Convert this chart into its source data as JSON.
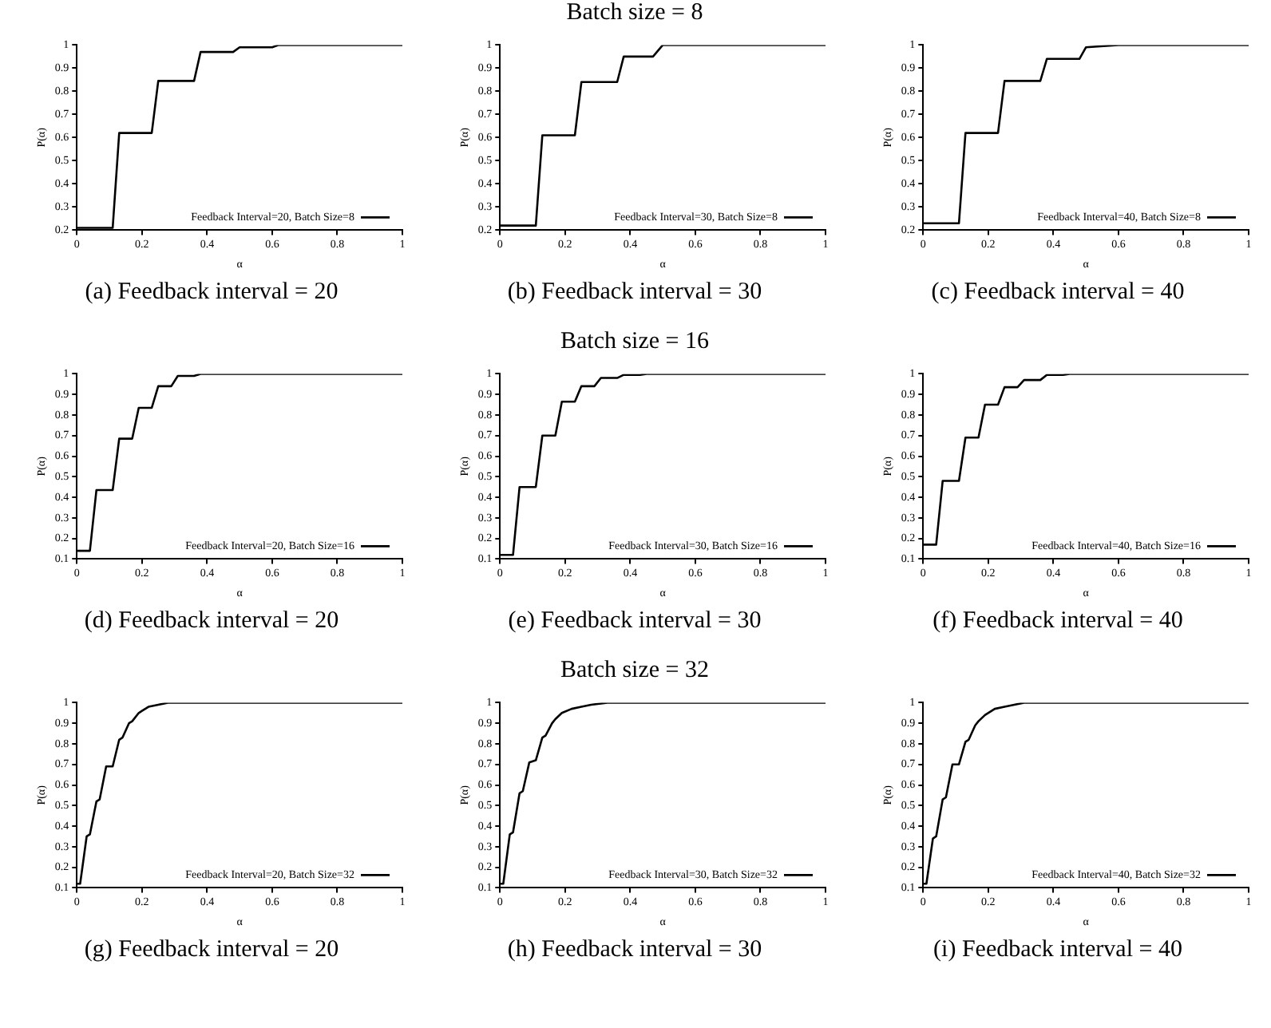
{
  "chart_data": [
    {
      "type": "line",
      "title": "(a) Feedback interval = 20",
      "xlabel": "α",
      "ylabel": "P(α)",
      "xlim": [
        0,
        1
      ],
      "ylim": [
        0.2,
        1
      ],
      "xticks": [
        0,
        0.2,
        0.4,
        0.6,
        0.8,
        1
      ],
      "yticks": [
        0.2,
        0.3,
        0.4,
        0.5,
        0.6,
        0.7,
        0.8,
        0.9,
        1
      ],
      "legend": "bottom right",
      "x": [
        0,
        0.11,
        0.13,
        0.23,
        0.25,
        0.36,
        0.38,
        0.48,
        0.5,
        0.6,
        0.62,
        1
      ],
      "series": [
        {
          "name": "Feedback Interval=20, Batch Size=8",
          "color": "#000000",
          "values": [
            0.21,
            0.21,
            0.62,
            0.62,
            0.845,
            0.845,
            0.97,
            0.97,
            0.99,
            0.99,
            1,
            1
          ]
        }
      ]
    },
    {
      "type": "line",
      "subtitle": "Batch size = 8",
      "title": "(b) Feedback interval = 30",
      "xlabel": "α",
      "ylabel": "P(α)",
      "xlim": [
        0,
        1
      ],
      "ylim": [
        0.2,
        1
      ],
      "xticks": [
        0,
        0.2,
        0.4,
        0.6,
        0.8,
        1
      ],
      "yticks": [
        0.2,
        0.3,
        0.4,
        0.5,
        0.6,
        0.7,
        0.8,
        0.9,
        1
      ],
      "legend": "bottom right",
      "x": [
        0,
        0.11,
        0.13,
        0.23,
        0.25,
        0.36,
        0.38,
        0.47,
        0.5,
        1
      ],
      "series": [
        {
          "name": "Feedback Interval=30, Batch Size=8",
          "color": "#000000",
          "values": [
            0.22,
            0.22,
            0.61,
            0.61,
            0.84,
            0.84,
            0.95,
            0.95,
            1,
            1
          ]
        }
      ]
    },
    {
      "type": "line",
      "title": "(c) Feedback interval = 40",
      "xlabel": "α",
      "ylabel": "P(α)",
      "xlim": [
        0,
        1
      ],
      "ylim": [
        0.2,
        1
      ],
      "xticks": [
        0,
        0.2,
        0.4,
        0.6,
        0.8,
        1
      ],
      "yticks": [
        0.2,
        0.3,
        0.4,
        0.5,
        0.6,
        0.7,
        0.8,
        0.9,
        1
      ],
      "legend": "bottom right",
      "x": [
        0,
        0.11,
        0.13,
        0.23,
        0.25,
        0.36,
        0.38,
        0.48,
        0.5,
        0.6,
        1
      ],
      "series": [
        {
          "name": "Feedback Interval=40, Batch Size=8",
          "color": "#000000",
          "values": [
            0.23,
            0.23,
            0.62,
            0.62,
            0.845,
            0.845,
            0.94,
            0.94,
            0.99,
            1,
            1
          ]
        }
      ]
    },
    {
      "type": "line",
      "title": "(d) Feedback interval = 20",
      "xlabel": "α",
      "ylabel": "P(α)",
      "xlim": [
        0,
        1
      ],
      "ylim": [
        0.1,
        1
      ],
      "xticks": [
        0,
        0.2,
        0.4,
        0.6,
        0.8,
        1
      ],
      "yticks": [
        0.1,
        0.2,
        0.3,
        0.4,
        0.5,
        0.6,
        0.7,
        0.8,
        0.9,
        1
      ],
      "legend": "bottom right",
      "x": [
        0,
        0.04,
        0.06,
        0.11,
        0.13,
        0.17,
        0.19,
        0.23,
        0.25,
        0.29,
        0.31,
        0.36,
        0.38,
        1
      ],
      "series": [
        {
          "name": "Feedback Interval=20, Batch Size=16",
          "color": "#000000",
          "values": [
            0.14,
            0.14,
            0.435,
            0.435,
            0.685,
            0.685,
            0.835,
            0.835,
            0.94,
            0.94,
            0.99,
            0.99,
            1,
            1
          ]
        }
      ]
    },
    {
      "type": "line",
      "subtitle": "Batch size = 16",
      "title": "(e) Feedback interval = 30",
      "xlabel": "α",
      "ylabel": "P(α)",
      "xlim": [
        0,
        1
      ],
      "ylim": [
        0.1,
        1
      ],
      "xticks": [
        0,
        0.2,
        0.4,
        0.6,
        0.8,
        1
      ],
      "yticks": [
        0.1,
        0.2,
        0.3,
        0.4,
        0.5,
        0.6,
        0.7,
        0.8,
        0.9,
        1
      ],
      "legend": "bottom right",
      "x": [
        0,
        0.04,
        0.06,
        0.11,
        0.13,
        0.17,
        0.19,
        0.23,
        0.25,
        0.29,
        0.31,
        0.36,
        0.38,
        0.43,
        0.45,
        1
      ],
      "series": [
        {
          "name": "Feedback Interval=30, Batch Size=16",
          "color": "#000000",
          "values": [
            0.12,
            0.12,
            0.45,
            0.45,
            0.7,
            0.7,
            0.865,
            0.865,
            0.94,
            0.94,
            0.98,
            0.98,
            0.995,
            0.995,
            1,
            1
          ]
        }
      ]
    },
    {
      "type": "line",
      "title": "(f) Feedback interval = 40",
      "xlabel": "α",
      "ylabel": "P(α)",
      "xlim": [
        0,
        1
      ],
      "ylim": [
        0.1,
        1
      ],
      "xticks": [
        0,
        0.2,
        0.4,
        0.6,
        0.8,
        1
      ],
      "yticks": [
        0.1,
        0.2,
        0.3,
        0.4,
        0.5,
        0.6,
        0.7,
        0.8,
        0.9,
        1
      ],
      "legend": "bottom right",
      "x": [
        0,
        0.04,
        0.06,
        0.11,
        0.13,
        0.17,
        0.19,
        0.23,
        0.25,
        0.29,
        0.31,
        0.36,
        0.38,
        0.43,
        0.45,
        1
      ],
      "series": [
        {
          "name": "Feedback Interval=40, Batch Size=16",
          "color": "#000000",
          "values": [
            0.17,
            0.17,
            0.48,
            0.48,
            0.69,
            0.69,
            0.85,
            0.85,
            0.935,
            0.935,
            0.97,
            0.97,
            0.995,
            0.995,
            1,
            1
          ]
        }
      ]
    },
    {
      "type": "line",
      "title": "(g) Feedback interval = 20",
      "xlabel": "α",
      "ylabel": "P(α)",
      "xlim": [
        0,
        1
      ],
      "ylim": [
        0.1,
        1
      ],
      "xticks": [
        0,
        0.2,
        0.4,
        0.6,
        0.8,
        1
      ],
      "yticks": [
        0.1,
        0.2,
        0.3,
        0.4,
        0.5,
        0.6,
        0.7,
        0.8,
        0.9,
        1
      ],
      "legend": "bottom right",
      "x": [
        0,
        0.01,
        0.03,
        0.04,
        0.06,
        0.07,
        0.09,
        0.11,
        0.13,
        0.14,
        0.16,
        0.17,
        0.19,
        0.2,
        0.22,
        0.25,
        0.28,
        1
      ],
      "series": [
        {
          "name": "Feedback Interval=20, Batch Size=32",
          "color": "#000000",
          "values": [
            0.12,
            0.12,
            0.35,
            0.36,
            0.52,
            0.53,
            0.69,
            0.69,
            0.82,
            0.83,
            0.9,
            0.91,
            0.95,
            0.96,
            0.98,
            0.99,
            1,
            1
          ]
        }
      ]
    },
    {
      "type": "line",
      "subtitle": "Batch size = 32",
      "title": "(h) Feedback interval = 30",
      "xlabel": "α",
      "ylabel": "P(α)",
      "xlim": [
        0,
        1
      ],
      "ylim": [
        0.1,
        1
      ],
      "xticks": [
        0,
        0.2,
        0.4,
        0.6,
        0.8,
        1
      ],
      "yticks": [
        0.1,
        0.2,
        0.3,
        0.4,
        0.5,
        0.6,
        0.7,
        0.8,
        0.9,
        1
      ],
      "legend": "bottom right",
      "x": [
        0,
        0.01,
        0.03,
        0.04,
        0.06,
        0.07,
        0.09,
        0.11,
        0.13,
        0.14,
        0.16,
        0.17,
        0.19,
        0.22,
        0.25,
        0.28,
        0.33,
        1
      ],
      "series": [
        {
          "name": "Feedback Interval=30, Batch Size=32",
          "color": "#000000",
          "values": [
            0.12,
            0.12,
            0.36,
            0.37,
            0.56,
            0.57,
            0.71,
            0.72,
            0.83,
            0.84,
            0.9,
            0.92,
            0.95,
            0.97,
            0.98,
            0.99,
            1,
            1
          ]
        }
      ]
    },
    {
      "type": "line",
      "title": "(i) Feedback interval = 40",
      "xlabel": "α",
      "ylabel": "P(α)",
      "xlim": [
        0,
        1
      ],
      "ylim": [
        0.1,
        1
      ],
      "xticks": [
        0,
        0.2,
        0.4,
        0.6,
        0.8,
        1
      ],
      "yticks": [
        0.1,
        0.2,
        0.3,
        0.4,
        0.5,
        0.6,
        0.7,
        0.8,
        0.9,
        1
      ],
      "legend": "bottom right",
      "x": [
        0,
        0.01,
        0.03,
        0.04,
        0.06,
        0.07,
        0.09,
        0.11,
        0.13,
        0.14,
        0.16,
        0.17,
        0.19,
        0.22,
        0.25,
        0.28,
        0.31,
        1
      ],
      "series": [
        {
          "name": "Feedback Interval=40, Batch Size=32",
          "color": "#000000",
          "values": [
            0.12,
            0.12,
            0.34,
            0.35,
            0.53,
            0.54,
            0.7,
            0.7,
            0.81,
            0.82,
            0.89,
            0.91,
            0.94,
            0.97,
            0.98,
            0.99,
            1,
            1
          ]
        }
      ]
    }
  ]
}
